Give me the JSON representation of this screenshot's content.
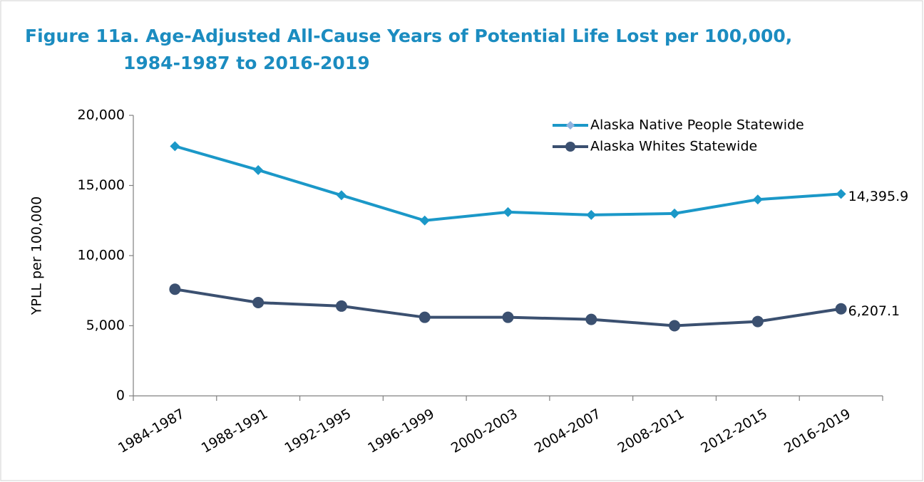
{
  "chart_data": {
    "type": "line",
    "title": [
      "Figure 11a. Age-Adjusted All-Cause Years of Potential Life Lost per 100,000,",
      "1984-1987 to 2016-2019"
    ],
    "ylabel": "YPLL per 100,000",
    "categories": [
      "1984-1987",
      "1988-1991",
      "1992-1995",
      "1996-1999",
      "2000-2003",
      "2004-2007",
      "2008-2011",
      "2012-2015",
      "2016-2019"
    ],
    "series": [
      {
        "name": "Alaska Native People Statewide",
        "color": "#1b98c8",
        "marker": "diamond",
        "values": [
          17800,
          16100,
          14300,
          12500,
          13100,
          12900,
          13000,
          14000,
          14395.9
        ],
        "value_labels": [
          null,
          null,
          null,
          null,
          null,
          null,
          null,
          null,
          "14,395.9"
        ]
      },
      {
        "name": "Alaska Whites Statewide",
        "color": "#3b5070",
        "marker": "circle",
        "values": [
          7600,
          6650,
          6400,
          5600,
          5600,
          5450,
          5000,
          5300,
          6207.1
        ],
        "value_labels": [
          null,
          null,
          null,
          null,
          null,
          null,
          null,
          null,
          "6,207.1"
        ]
      }
    ],
    "ylim": [
      0,
      20000
    ],
    "yticks": [
      0,
      {
        "value": 5000,
        "label": "5,000"
      },
      {
        "value": 10000,
        "label": "10,000"
      },
      {
        "value": 15000,
        "label": "15,000"
      },
      {
        "value": 20000,
        "label": "20,000"
      }
    ],
    "grid": false,
    "legend": "upper right"
  }
}
